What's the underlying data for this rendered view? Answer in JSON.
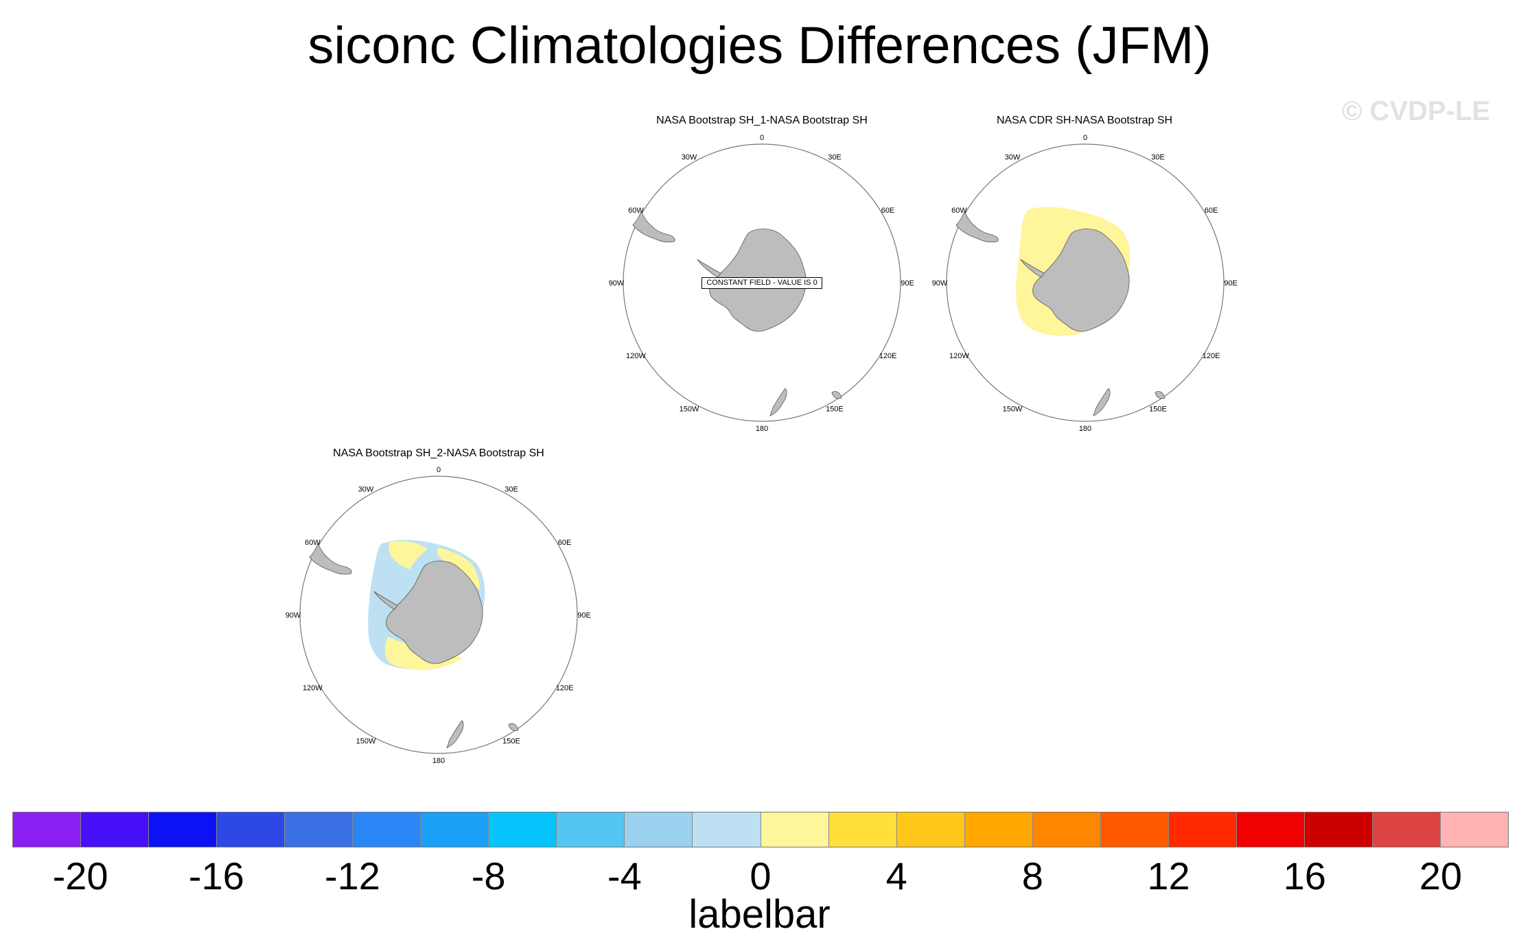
{
  "title": "siconc Climatologies Differences (JFM)",
  "watermark": "© CVDP-LE",
  "lon_labels": [
    "0",
    "30E",
    "60E",
    "90E",
    "120E",
    "150E",
    "180",
    "150W",
    "120W",
    "90W",
    "60W",
    "30W"
  ],
  "panels": [
    {
      "title": "NASA Bootstrap SH_1-NASA Bootstrap SH",
      "note": "CONSTANT FIELD - VALUE IS 0"
    },
    {
      "title": "NASA CDR SH-NASA Bootstrap SH"
    },
    {
      "title": "NASA Bootstrap SH_2-NASA Bootstrap SH"
    }
  ],
  "colorbar": {
    "title": "labelbar",
    "ticks": [
      "-20",
      "-16",
      "-12",
      "-8",
      "-4",
      "0",
      "4",
      "8",
      "12",
      "16",
      "20"
    ],
    "colors": [
      "#8a1ff2",
      "#4510f7",
      "#0b12f4",
      "#2d48e4",
      "#3a6fe6",
      "#2a86f7",
      "#1aa0f7",
      "#06c4fb",
      "#55c5f1",
      "#9bd0ee",
      "#bde1f3",
      "#fff59b",
      "#ffe03b",
      "#ffc719",
      "#ffa700",
      "#ff8600",
      "#ff5a00",
      "#ff2a00",
      "#f00000",
      "#cc0000",
      "#dd4444",
      "#ffb3b3"
    ]
  },
  "colors": {
    "land": "#bdbdbd",
    "positive": "#fff59b",
    "negative": "#bde1f3"
  }
}
